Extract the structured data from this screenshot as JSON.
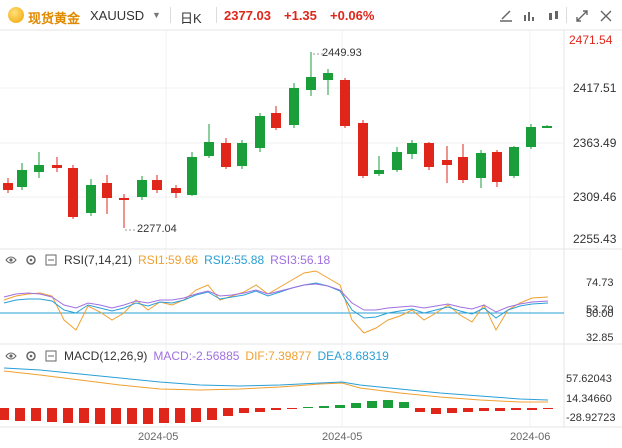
{
  "header": {
    "instrument_label": "现货黄金",
    "symbol": "XAUUSD",
    "period": "日K",
    "price": "2377.03",
    "change": "+1.35",
    "change_pct": "+0.06%"
  },
  "toolbar_icons": [
    "draw-tool-icon",
    "indicator-icon",
    "settings-icon",
    "expand-icon",
    "screenshot-icon"
  ],
  "main_chart": {
    "price_axis": [
      "2471.54",
      "2417.51",
      "2363.49",
      "2309.46",
      "2255.43"
    ],
    "high_label": "2449.93",
    "low_label": "2277.04",
    "colors": {
      "up": "#1a9e3a",
      "down": "#e0261b"
    }
  },
  "rsi": {
    "name": "RSI(7,14,21)",
    "rsi1": "RSI1:59.66",
    "rsi2": "RSI2:55.88",
    "rsi3": "RSI3:56.18",
    "axis": [
      "74.73",
      "53.79",
      "50.00",
      "32.85"
    ],
    "colors": {
      "rsi1": "#f0a030",
      "rsi2": "#2a9fd6",
      "rsi3": "#a070e0"
    }
  },
  "macd": {
    "name": "MACD(12,26,9)",
    "macd": "MACD:-2.56885",
    "dif": "DIF:7.39877",
    "dea": "DEA:8.68319",
    "axis": [
      "57.62043",
      "14.34660",
      "-28.92723"
    ]
  },
  "x_axis": [
    "2024-05",
    "2024-05",
    "2024-06"
  ]
}
